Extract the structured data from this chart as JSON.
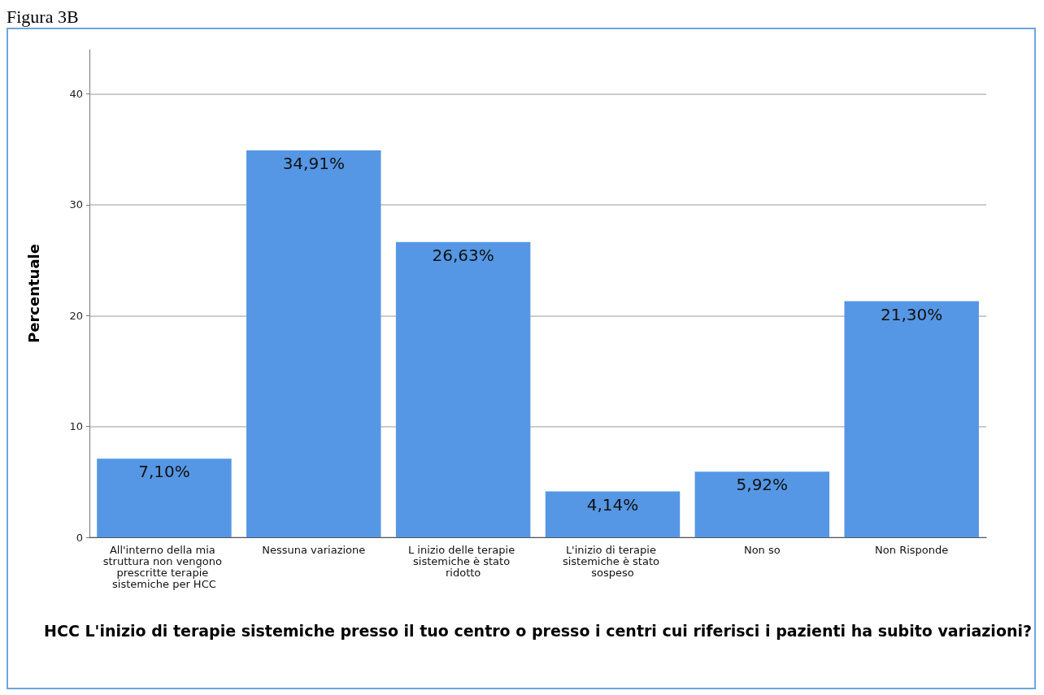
{
  "chart_data": {
    "type": "bar",
    "title": "Figura 3B",
    "xlabel": "HCC L'inizio di terapie sistemiche presso il tuo centro o presso i centri cui riferisci i pazienti ha subito variazioni?",
    "ylabel": "Percentuale",
    "categories": [
      "All'interno della mia struttura non vengono prescritte terapie sistemiche per HCC",
      "Nessuna variazione",
      "L inizio delle terapie sistemiche è stato ridotto",
      "L'inizio di terapie sistemiche è stato sospeso",
      "Non so",
      "Non Risponde"
    ],
    "values": [
      7.1,
      34.91,
      26.63,
      4.14,
      5.92,
      21.3
    ],
    "value_labels": [
      "7,10%",
      "34,91%",
      "26,63%",
      "4,14%",
      "5,92%",
      "21,30%"
    ],
    "color": "#5597e4",
    "ylim": [
      0,
      44
    ],
    "yticks": [
      0,
      10,
      20,
      30,
      40
    ],
    "grid": "y"
  }
}
